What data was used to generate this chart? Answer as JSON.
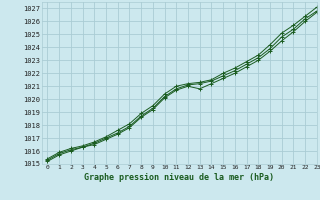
{
  "title": "Graphe pression niveau de la mer (hPa)",
  "bg_color": "#cce8ee",
  "grid_color": "#aaccd4",
  "line_color": "#1a5c20",
  "xlim": [
    -0.5,
    23
  ],
  "ylim": [
    1015,
    1027.5
  ],
  "xticks": [
    0,
    1,
    2,
    3,
    4,
    5,
    6,
    7,
    8,
    9,
    10,
    11,
    12,
    13,
    14,
    15,
    16,
    17,
    18,
    19,
    20,
    21,
    22,
    23
  ],
  "yticks": [
    1015,
    1016,
    1017,
    1018,
    1019,
    1020,
    1021,
    1022,
    1023,
    1024,
    1025,
    1026,
    1027
  ],
  "line1_x": [
    0,
    1,
    2,
    3,
    4,
    5,
    6,
    7,
    8,
    9,
    10,
    11,
    12,
    13,
    14,
    15,
    16,
    17,
    18,
    19,
    20,
    21,
    22,
    23
  ],
  "line1_y": [
    1015.3,
    1015.8,
    1016.1,
    1016.3,
    1016.6,
    1017.0,
    1017.4,
    1017.9,
    1018.7,
    1019.3,
    1020.2,
    1020.8,
    1021.1,
    1021.2,
    1021.4,
    1021.8,
    1022.2,
    1022.7,
    1023.2,
    1023.9,
    1024.8,
    1025.4,
    1026.2,
    1026.8
  ],
  "line2_x": [
    0,
    1,
    2,
    3,
    4,
    5,
    6,
    7,
    8,
    9,
    10,
    11,
    12,
    13,
    14,
    15,
    16,
    17,
    18,
    19,
    20,
    21,
    22,
    23
  ],
  "line2_y": [
    1015.2,
    1015.7,
    1016.0,
    1016.3,
    1016.5,
    1016.9,
    1017.3,
    1017.8,
    1018.6,
    1019.2,
    1020.1,
    1020.7,
    1021.0,
    1020.8,
    1021.2,
    1021.6,
    1022.0,
    1022.5,
    1023.0,
    1023.7,
    1024.5,
    1025.2,
    1026.0,
    1026.7
  ],
  "line3_x": [
    0,
    1,
    2,
    3,
    4,
    5,
    6,
    7,
    8,
    9,
    10,
    11,
    12,
    13,
    14,
    15,
    16,
    17,
    18,
    19,
    20,
    21,
    22,
    23
  ],
  "line3_y": [
    1015.4,
    1015.9,
    1016.2,
    1016.4,
    1016.7,
    1017.1,
    1017.6,
    1018.1,
    1018.9,
    1019.5,
    1020.4,
    1021.0,
    1021.2,
    1021.3,
    1021.5,
    1022.0,
    1022.4,
    1022.9,
    1023.4,
    1024.2,
    1025.1,
    1025.7,
    1026.4,
    1027.1
  ]
}
